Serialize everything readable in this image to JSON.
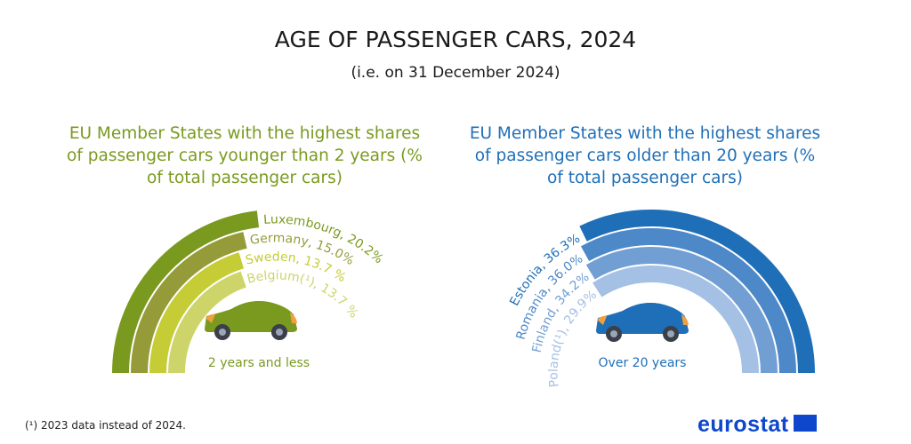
{
  "title": "AGE OF PASSENGER CARS, 2024",
  "subtitle": "(i.e. on 31 December 2024)",
  "footnote": "(¹) 2023 data instead of 2024.",
  "logo": "eurostat",
  "chart_data": [
    {
      "type": "radial-bar",
      "title": "EU Member States with the highest shares of passenger cars younger than 2 years (% of total passenger cars)",
      "center_label": "2 years and less",
      "unit": "%",
      "categories": [
        "Luxembourg",
        "Germany",
        "Sweden",
        "Belgium(¹)"
      ],
      "values": [
        20.2,
        15.0,
        13.7,
        13.7
      ],
      "labels": [
        "Luxembourg, 20.2%",
        "Germany, 15.0%",
        "Sweden, 13.7 %",
        "Belgium(¹), 13.7 %"
      ],
      "colors": [
        "#7a9a1f",
        "#959b39",
        "#c5cc35",
        "#cdd56a"
      ],
      "car_color": "#7a9a1f"
    },
    {
      "type": "radial-bar",
      "title": "EU Member States with the highest shares of passenger cars older than 20 years (% of total passenger cars)",
      "center_label": "Over 20 years",
      "unit": "%",
      "categories": [
        "Estonia",
        "Romania",
        "Finland",
        "Poland(¹)"
      ],
      "values": [
        36.3,
        36.0,
        34.2,
        29.9
      ],
      "labels": [
        "Estonia, 36.3%",
        "Romania, 36.0%",
        "Finland, 34.2%",
        "Poland(¹), 29.9%"
      ],
      "colors": [
        "#1f6fb8",
        "#4d88c8",
        "#729fd3",
        "#a4c0e4"
      ],
      "car_color": "#1f6fb8"
    }
  ]
}
